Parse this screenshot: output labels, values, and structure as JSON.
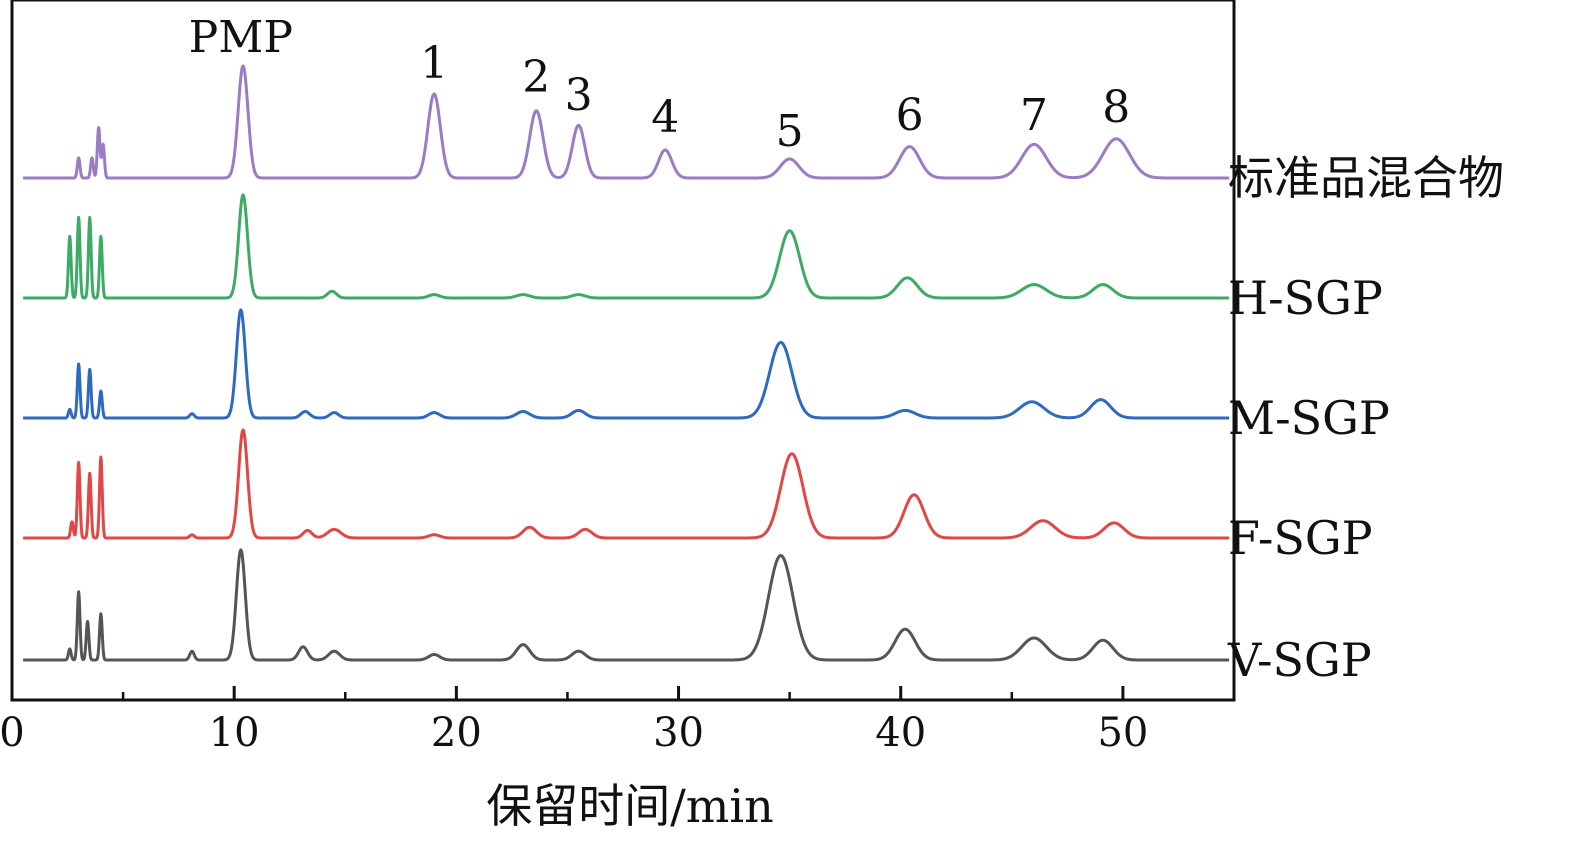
{
  "chart_data": {
    "type": "line",
    "title": "",
    "xlabel": "保留时间/min",
    "ylabel": "",
    "xlim": [
      0,
      55
    ],
    "x_ticks": [
      0,
      10,
      20,
      30,
      40,
      50
    ],
    "x_tick_labels": [
      "0",
      "10",
      "20",
      "30",
      "40",
      "50"
    ],
    "y_ticks_visible": false,
    "grid": false,
    "legend": "labels at right end of each trace",
    "peak_labels": [
      {
        "text": "PMP",
        "x": 10.3
      },
      {
        "text": "1",
        "x": 19.0
      },
      {
        "text": "2",
        "x": 23.6
      },
      {
        "text": "3",
        "x": 25.5
      },
      {
        "text": "4",
        "x": 29.4
      },
      {
        "text": "5",
        "x": 35.0
      },
      {
        "text": "6",
        "x": 40.4
      },
      {
        "text": "7",
        "x": 46.0
      },
      {
        "text": "8",
        "x": 49.7
      }
    ],
    "series": [
      {
        "name": "标准品混合物",
        "color": "#9a7bc4",
        "peaks": [
          [
            3.0,
            0.18,
            0.06
          ],
          [
            3.6,
            0.18,
            0.06
          ],
          [
            3.9,
            0.45,
            0.06
          ],
          [
            4.1,
            0.3,
            0.06
          ],
          [
            10.4,
            1.0,
            0.22
          ],
          [
            19.0,
            0.75,
            0.28
          ],
          [
            23.6,
            0.6,
            0.3
          ],
          [
            25.5,
            0.47,
            0.28
          ],
          [
            29.4,
            0.25,
            0.3
          ],
          [
            35.0,
            0.17,
            0.42
          ],
          [
            40.4,
            0.28,
            0.45
          ],
          [
            46.0,
            0.3,
            0.55
          ],
          [
            49.7,
            0.35,
            0.6
          ]
        ]
      },
      {
        "name": "H-SGP",
        "color": "#3daa66",
        "peaks": [
          [
            2.6,
            0.55,
            0.06
          ],
          [
            3.0,
            0.72,
            0.06
          ],
          [
            3.5,
            0.72,
            0.06
          ],
          [
            4.0,
            0.55,
            0.06
          ],
          [
            10.4,
            0.92,
            0.2
          ],
          [
            14.4,
            0.06,
            0.2
          ],
          [
            19.0,
            0.03,
            0.25
          ],
          [
            23.0,
            0.03,
            0.3
          ],
          [
            25.5,
            0.03,
            0.3
          ],
          [
            35.0,
            0.6,
            0.45
          ],
          [
            40.3,
            0.18,
            0.45
          ],
          [
            46.0,
            0.12,
            0.55
          ],
          [
            49.1,
            0.12,
            0.45
          ]
        ]
      },
      {
        "name": "M-SGP",
        "color": "#2e6bbf",
        "peaks": [
          [
            2.6,
            0.08,
            0.06
          ],
          [
            3.0,
            0.5,
            0.06
          ],
          [
            3.5,
            0.45,
            0.06
          ],
          [
            4.0,
            0.25,
            0.06
          ],
          [
            8.1,
            0.04,
            0.1
          ],
          [
            10.3,
            1.0,
            0.2
          ],
          [
            13.2,
            0.06,
            0.2
          ],
          [
            14.5,
            0.05,
            0.2
          ],
          [
            19.0,
            0.05,
            0.25
          ],
          [
            23.0,
            0.06,
            0.3
          ],
          [
            25.5,
            0.07,
            0.3
          ],
          [
            34.6,
            0.7,
            0.5
          ],
          [
            40.2,
            0.07,
            0.45
          ],
          [
            45.9,
            0.15,
            0.55
          ],
          [
            49.0,
            0.17,
            0.45
          ]
        ]
      },
      {
        "name": "F-SGP",
        "color": "#e04747",
        "peaks": [
          [
            2.7,
            0.15,
            0.06
          ],
          [
            3.0,
            0.7,
            0.06
          ],
          [
            3.5,
            0.6,
            0.06
          ],
          [
            4.0,
            0.75,
            0.06
          ],
          [
            8.1,
            0.03,
            0.1
          ],
          [
            10.4,
            1.0,
            0.2
          ],
          [
            13.3,
            0.07,
            0.2
          ],
          [
            14.5,
            0.08,
            0.3
          ],
          [
            19.0,
            0.03,
            0.25
          ],
          [
            23.3,
            0.1,
            0.3
          ],
          [
            25.8,
            0.08,
            0.3
          ],
          [
            35.1,
            0.78,
            0.5
          ],
          [
            40.6,
            0.4,
            0.45
          ],
          [
            46.4,
            0.16,
            0.55
          ],
          [
            49.6,
            0.14,
            0.45
          ]
        ]
      },
      {
        "name": "V-SGP",
        "color": "#555555",
        "peaks": [
          [
            2.6,
            0.1,
            0.06
          ],
          [
            3.0,
            0.62,
            0.06
          ],
          [
            3.4,
            0.35,
            0.06
          ],
          [
            4.0,
            0.42,
            0.06
          ],
          [
            8.1,
            0.08,
            0.1
          ],
          [
            10.3,
            1.0,
            0.2
          ],
          [
            13.1,
            0.12,
            0.2
          ],
          [
            14.5,
            0.08,
            0.25
          ],
          [
            19.0,
            0.05,
            0.25
          ],
          [
            23.0,
            0.14,
            0.3
          ],
          [
            25.5,
            0.08,
            0.3
          ],
          [
            34.6,
            0.95,
            0.55
          ],
          [
            40.2,
            0.28,
            0.45
          ],
          [
            46.0,
            0.2,
            0.55
          ],
          [
            49.1,
            0.18,
            0.45
          ]
        ]
      }
    ]
  }
}
